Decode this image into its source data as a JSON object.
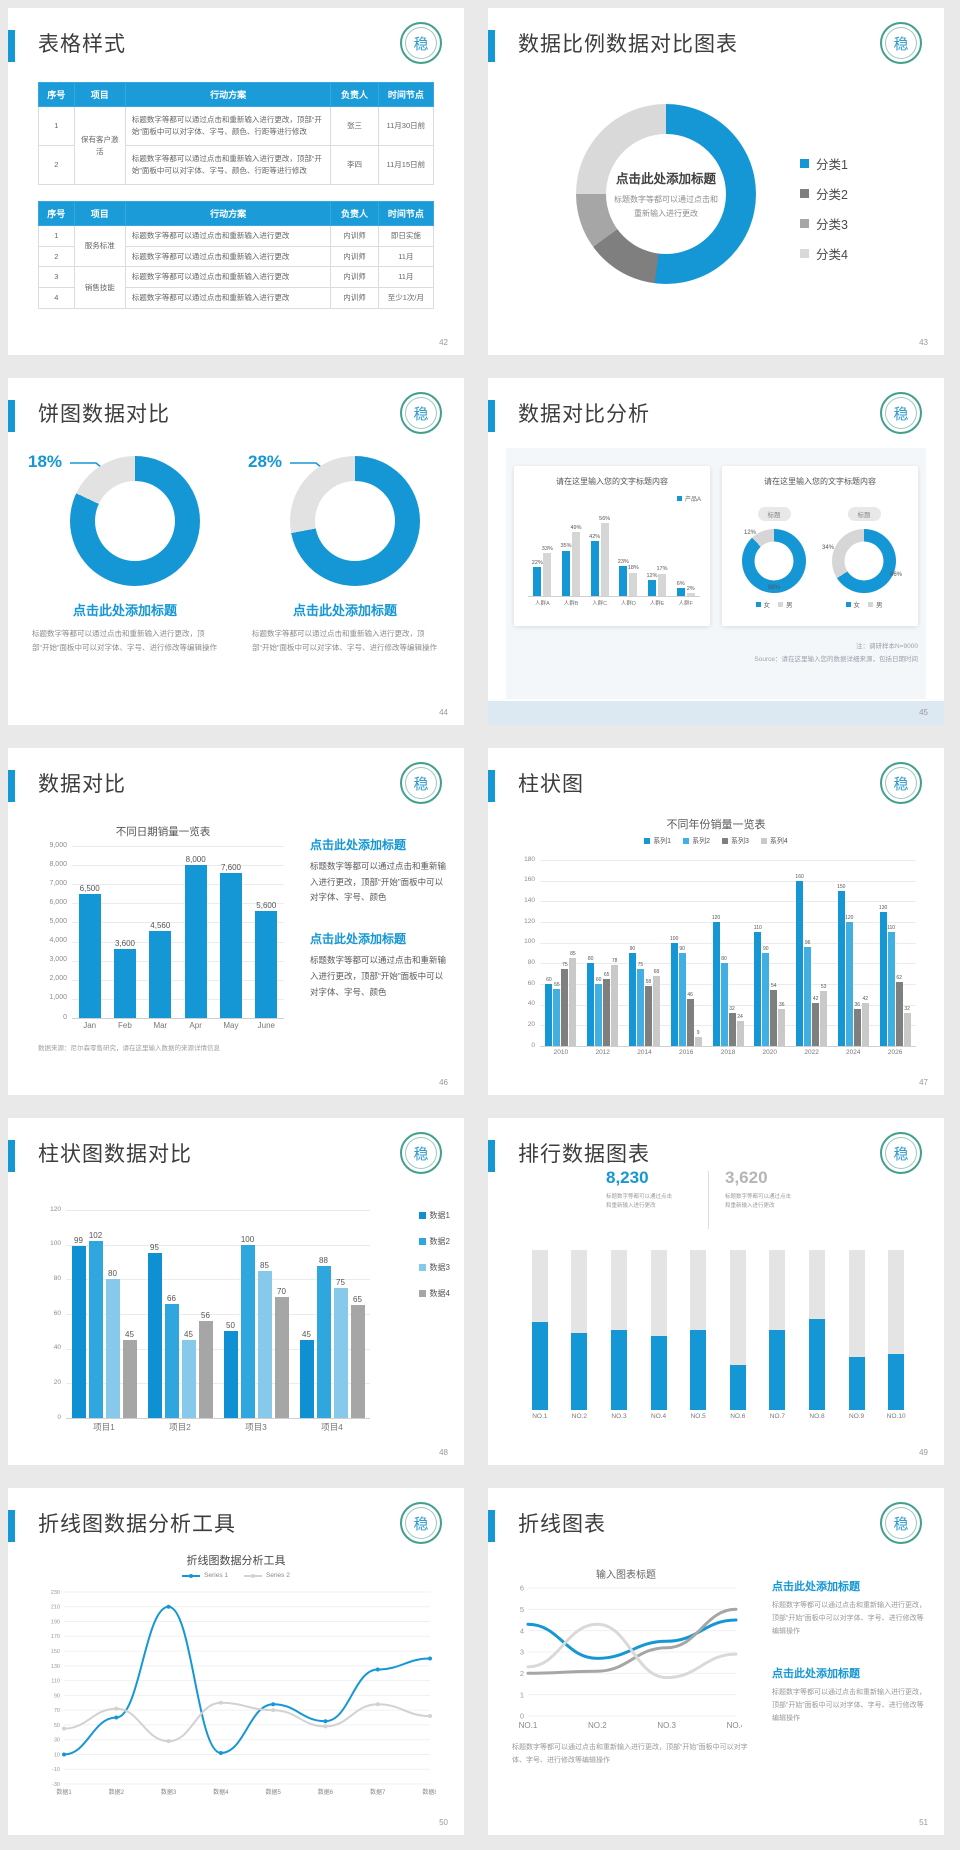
{
  "accent": "#1597d5",
  "page_bg": "#e9e9e9",
  "logo": {
    "char": "稳"
  },
  "slides": [
    {
      "title": "表格样式",
      "page": "42",
      "tables": [
        {
          "headers": [
            "序号",
            "项目",
            "行动方案",
            "负责人",
            "时间节点"
          ],
          "rows": [
            {
              "no": "1",
              "project": "保有客户激活",
              "span": 2,
              "plan": "标题数字等都可以通过点击和重新输入进行更改，顶部“开始”面板中可以对字体、字号、颜色、行距等进行修改",
              "owner": "张三",
              "time": "11月30日前"
            },
            {
              "no": "2",
              "plan": "标题数字等都可以通过点击和重新输入进行更改，顶部“开始”面板中可以对字体、字号、颜色、行距等进行修改",
              "owner": "李四",
              "time": "11月15日前"
            }
          ]
        },
        {
          "headers": [
            "序号",
            "项目",
            "行动方案",
            "负责人",
            "时间节点"
          ],
          "rows": [
            {
              "no": "1",
              "project": "服务标准",
              "span": 2,
              "plan": "标题数字等都可以通过点击和重新输入进行更改",
              "owner": "内训师",
              "time": "即日实施"
            },
            {
              "no": "2",
              "plan": "标题数字等都可以通过点击和重新输入进行更改",
              "owner": "内训师",
              "time": "11月"
            },
            {
              "no": "3",
              "project": "销售技能",
              "span": 2,
              "plan": "标题数字等都可以通过点击和重新输入进行更改",
              "owner": "内训师",
              "time": "11月"
            },
            {
              "no": "4",
              "plan": "标题数字等都可以通过点击和重新输入进行更改",
              "owner": "内训师",
              "time": "至少1次/月"
            }
          ]
        }
      ]
    },
    {
      "title": "数据比例数据对比图表",
      "page": "43",
      "donut": {
        "center_title": "点击此处添加标题",
        "center_sub": "标题数字等都可以通过点击和重新输入进行更改",
        "segments": [
          {
            "label": "分类1",
            "value": 52,
            "color": "#1597d5"
          },
          {
            "label": "分类2",
            "value": 13,
            "color": "#7f7f7f"
          },
          {
            "label": "分类3",
            "value": 10,
            "color": "#a6a6a6"
          },
          {
            "label": "分类4",
            "value": 25,
            "color": "#d9d9d9"
          }
        ]
      }
    },
    {
      "title": "饼图数据对比",
      "page": "44",
      "colors": {
        "blue": "#1597d5",
        "gray": "#e2e2e2"
      },
      "donuts": [
        {
          "pct": 18,
          "pct_label": "18%",
          "title": "点击此处添加标题",
          "body": "标题数字等都可以通过点击和重新输入进行更改，顶部“开始”面板中可以对字体、字号、进行修改等编辑操作"
        },
        {
          "pct": 28,
          "pct_label": "28%",
          "title": "点击此处添加标题",
          "body": "标题数字等都可以通过点击和重新输入进行更改，顶部“开始”面板中可以对字体、字号、进行修改等编辑操作"
        }
      ]
    },
    {
      "title": "数据对比分析",
      "page": "45",
      "cards": [
        {
          "title": "请在这里输入您的文字标题内容",
          "chart": {
            "type": "bar",
            "categories": [
              "人群A",
              "人群B",
              "人群C",
              "人群D",
              "人群E",
              "人群F"
            ],
            "series": [
              {
                "name": "产品A",
                "color": "#1597d5",
                "values": [
                  22,
                  35,
                  42,
                  23,
                  12,
                  6
                ]
              },
              {
                "name": "",
                "color": "#d6d6d6",
                "values": [
                  33,
                  49,
                  56,
                  18,
                  17,
                  2
                ]
              }
            ],
            "ymax": 60
          }
        },
        {
          "title": "请在这里输入您的文字标题内容",
          "badge": "标题",
          "donuts": [
            {
              "blue": 88,
              "gray": 12,
              "labels": [
                "12%",
                "88%"
              ]
            },
            {
              "blue": 66,
              "gray": 34,
              "labels": [
                "34%",
                "66%"
              ]
            }
          ],
          "legend": [
            {
              "label": "女",
              "color": "#1597d5"
            },
            {
              "label": "男",
              "color": "#d6d6d6"
            }
          ]
        }
      ],
      "notes": [
        "注：调研样本N=9000",
        "Source：请在这里输入您的数据详细来源，包括日期时间"
      ]
    },
    {
      "title": "数据对比",
      "page": "46",
      "chart": {
        "type": "bar",
        "title": "不同日期销量一览表",
        "categories": [
          "Jan",
          "Feb",
          "Mar",
          "Apr",
          "May",
          "June"
        ],
        "values": [
          6500,
          3600,
          4560,
          8000,
          7600,
          5600
        ],
        "labels": [
          "6,500",
          "3,600",
          "4,560",
          "8,000",
          "7,600",
          "5,600"
        ],
        "ticks": [
          "9,000",
          "8,000",
          "7,000",
          "6,000",
          "5,000",
          "4,000",
          "3,000",
          "2,000",
          "1,000",
          "0"
        ],
        "ymax": 9000,
        "color": "#1597d5"
      },
      "blocks": [
        {
          "title": "点击此处添加标题",
          "body": "标题数字等都可以通过点击和重新输入进行更改，顶部“开始”面板中可以对字体、字号、颜色"
        },
        {
          "title": "点击此处添加标题",
          "body": "标题数字等都可以通过点击和重新输入进行更改，顶部“开始”面板中可以对字体、字号、颜色"
        }
      ],
      "note": "数据来源：尼尔森零售研究，请在这里输入数据的来源详情信息"
    },
    {
      "title": "柱状图",
      "page": "47",
      "chart": {
        "type": "bar",
        "title": "不同年份销量一览表",
        "categories": [
          "2010",
          "2012",
          "2014",
          "2016",
          "2018",
          "2020",
          "2022",
          "2024",
          "2026"
        ],
        "series": [
          {
            "name": "系列1",
            "color": "#1597d5",
            "values": [
              60,
              80,
              90,
              100,
              120,
              110,
              160,
              150,
              130
            ]
          },
          {
            "name": "系列2",
            "color": "#41afe2",
            "values": [
              55,
              60,
              75,
              90,
              80,
              90,
              96,
              120,
              110
            ]
          },
          {
            "name": "系列3",
            "color": "#7f7f7f",
            "values": [
              75,
              65,
              58,
              46,
              32,
              54,
              42,
              36,
              62
            ]
          },
          {
            "name": "系列4",
            "color": "#c9c9c9",
            "values": [
              85,
              78,
              68,
              9,
              24,
              36,
              53,
              42,
              32
            ]
          }
        ],
        "ymax": 180,
        "tick_step": 20
      }
    },
    {
      "title": "柱状图数据对比",
      "page": "48",
      "chart": {
        "type": "bar",
        "categories": [
          "项目1",
          "项目2",
          "项目3",
          "项目4"
        ],
        "series": [
          {
            "name": "数据1",
            "color": "#0e90d2",
            "values": [
              99,
              95,
              50,
              45
            ]
          },
          {
            "name": "数据2",
            "color": "#2fa6de",
            "values": [
              102,
              66,
              100,
              88
            ]
          },
          {
            "name": "数据3",
            "color": "#86c9ea",
            "values": [
              80,
              45,
              85,
              75
            ]
          },
          {
            "name": "数据4",
            "color": "#a6a6a6",
            "values": [
              45,
              56,
              70,
              65
            ]
          }
        ],
        "ymax": 120,
        "tick_step": 20
      }
    },
    {
      "title": "排行数据图表",
      "page": "49",
      "stats": [
        {
          "value": "8,230",
          "color": "#1597d5",
          "desc": "标题数字等都可以通过点击和重新输入进行更改"
        },
        {
          "value": "3,620",
          "color": "#b5b5b5",
          "desc": "标题数字等都可以通过点击和重新输入进行更改"
        }
      ],
      "chart": {
        "type": "stacked-bar",
        "categories": [
          "NO.1",
          "NO.2",
          "NO.3",
          "NO.4",
          "NO.5",
          "NO.6",
          "NO.7",
          "NO.8",
          "NO.9",
          "NO.10"
        ],
        "blue_pct": [
          55,
          48,
          50,
          46,
          50,
          28,
          50,
          57,
          33,
          35
        ],
        "total": 100,
        "colors": {
          "blue": "#1597d5",
          "gray": "#e4e4e4"
        }
      }
    },
    {
      "title": "折线图数据分析工具",
      "page": "50",
      "chart": {
        "type": "line",
        "title": "折线图数据分析工具",
        "categories": [
          "数据1",
          "数据2",
          "数据3",
          "数据4",
          "数据5",
          "数据6",
          "数据7",
          "数据8"
        ],
        "series": [
          {
            "name": "Series 1",
            "color": "#1597d5",
            "values": [
              10,
              60,
              210,
              12,
              78,
              55,
              125,
              140
            ]
          },
          {
            "name": "Series 2",
            "color": "#d2d2d2",
            "values": [
              45,
              72,
              28,
              80,
              70,
              48,
              78,
              62
            ]
          }
        ],
        "ymin": -30,
        "ymax": 230,
        "tick_step": 20
      }
    },
    {
      "title": "折线图表",
      "page": "51",
      "chart": {
        "type": "line",
        "title": "输入图表标题",
        "categories": [
          "NO.1",
          "NO.2",
          "NO.3",
          "NO.4"
        ],
        "series": [
          {
            "name": "",
            "color": "#1597d5",
            "values": [
              4.3,
              2.7,
              3.5,
              4.5
            ]
          },
          {
            "name": "",
            "color": "#a6a6a6",
            "values": [
              2.0,
              2.1,
              3.2,
              5.0
            ]
          },
          {
            "name": "",
            "color": "#d9d9d9",
            "values": [
              2.3,
              4.3,
              1.8,
              2.9
            ]
          }
        ],
        "ymin": 0,
        "ymax": 6,
        "tick_step": 1
      },
      "blocks": [
        {
          "title": "点击此处添加标题",
          "body": "标题数字等都可以通过点击和重新输入进行更改，顶部“开始”面板中可以对字体、字号、进行修改等编辑操作"
        },
        {
          "title": "点击此处添加标题",
          "body": "标题数字等都可以通过点击和重新输入进行更改，顶部“开始”面板中可以对字体、字号、进行修改等编辑操作"
        }
      ],
      "note": "标题数字等都可以通过点击和重新输入进行更改，顶部“开始”面板中可以对字体、字号、进行修改等编辑操作"
    }
  ]
}
